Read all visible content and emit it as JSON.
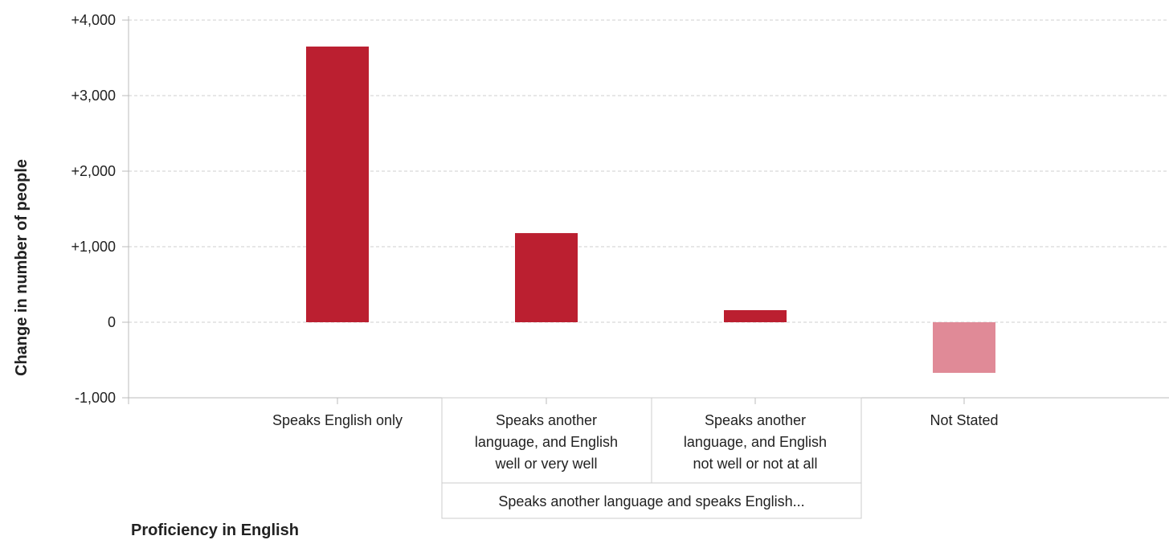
{
  "chart_data": {
    "type": "bar",
    "ylabel": "Change in number of people",
    "xlabel": "Proficiency in English",
    "ylim": [
      -1000,
      4000
    ],
    "yticks": [
      4000,
      3000,
      2000,
      1000,
      0,
      -1000
    ],
    "ytick_labels": [
      "+4,000",
      "+3,000",
      "+2,000",
      "+1,000",
      "0",
      "-1,000"
    ],
    "grid": true,
    "categories": [
      [
        "Speaks English only"
      ],
      [
        "Speaks another",
        "language, and English",
        "well or very well"
      ],
      [
        "Speaks another",
        "language, and English",
        "not well or not at all"
      ],
      [
        "Not Stated"
      ]
    ],
    "values": [
      3650,
      1180,
      160,
      -670
    ],
    "bar_colors": [
      "#bb1f30",
      "#bb1f30",
      "#bb1f30",
      "#e08a97"
    ],
    "group_label": "Speaks another language and speaks English..."
  }
}
